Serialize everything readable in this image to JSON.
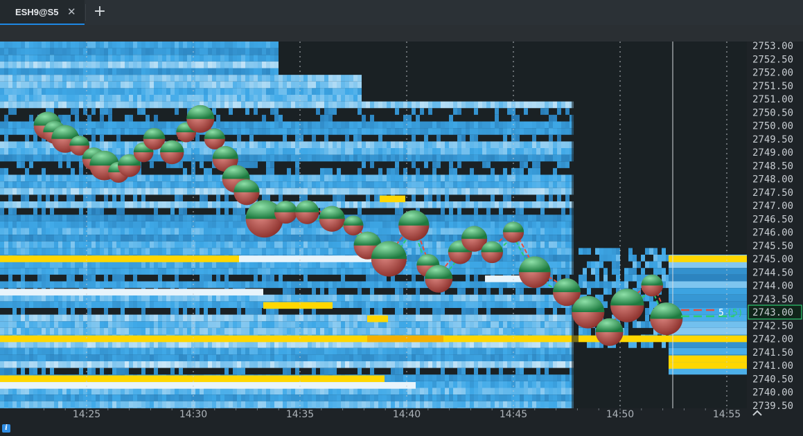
{
  "tab": {
    "label": "ESH9@S5",
    "close_glyph": "✕",
    "add_glyph": "+"
  },
  "price_axis": {
    "labels": [
      "2753.00",
      "2752.50",
      "2752.00",
      "2751.50",
      "2751.00",
      "2750.50",
      "2750.00",
      "2749.50",
      "2749.00",
      "2748.50",
      "2748.00",
      "2747.50",
      "2747.00",
      "2746.50",
      "2746.00",
      "2745.50",
      "2745.00",
      "2744.50",
      "2744.00",
      "2743.50",
      "2743.00",
      "2742.50",
      "2742.00",
      "2741.50",
      "2741.00",
      "2740.50",
      "2740.00",
      "2739.50"
    ],
    "current_price": "2743.00",
    "highlight_color": "#2ecc71"
  },
  "time_axis": {
    "labels": [
      "14:25",
      "14:30",
      "14:35",
      "14:40",
      "14:45",
      "14:50",
      "14:55"
    ],
    "interval_tag": "S5"
  },
  "order_marker": {
    "qty": "5",
    "qty_paren": "(5)"
  },
  "colors": {
    "background": "#1a2124",
    "heat_low": "#1f6aa3",
    "heat_mid": "#3fa9e8",
    "heat_high": "#e8f4fb",
    "heat_max": "#ffd700",
    "bubble_buy": "#3aa55e",
    "bubble_sell": "#c0504d",
    "bid_line": "#2ecc71",
    "ask_line": "#e74c3c"
  },
  "chart_data": {
    "type": "heatmap",
    "symbol": "ESH9@S5",
    "trade_bubbles": [
      {
        "t": "14:23:10",
        "price": 2750.0,
        "size": 2
      },
      {
        "t": "14:23:30",
        "price": 2749.75,
        "size": 1.5
      },
      {
        "t": "14:24:00",
        "price": 2749.5,
        "size": 2
      },
      {
        "t": "14:24:40",
        "price": 2749.25,
        "size": 1.2
      },
      {
        "t": "14:25:20",
        "price": 2748.75,
        "size": 1.5
      },
      {
        "t": "14:25:50",
        "price": 2748.5,
        "size": 2.2
      },
      {
        "t": "14:26:30",
        "price": 2748.25,
        "size": 1.3
      },
      {
        "t": "14:27:00",
        "price": 2748.5,
        "size": 1.5
      },
      {
        "t": "14:27:40",
        "price": 2749.0,
        "size": 1.2
      },
      {
        "t": "14:28:10",
        "price": 2749.5,
        "size": 1.4
      },
      {
        "t": "14:29:00",
        "price": 2749.0,
        "size": 1.6
      },
      {
        "t": "14:29:40",
        "price": 2749.75,
        "size": 1.2
      },
      {
        "t": "14:30:20",
        "price": 2750.25,
        "size": 2
      },
      {
        "t": "14:31:00",
        "price": 2749.5,
        "size": 1.3
      },
      {
        "t": "14:31:30",
        "price": 2748.75,
        "size": 1.8
      },
      {
        "t": "14:32:00",
        "price": 2748.0,
        "size": 2
      },
      {
        "t": "14:32:30",
        "price": 2747.5,
        "size": 1.8
      },
      {
        "t": "14:33:20",
        "price": 2746.5,
        "size": 3
      },
      {
        "t": "14:34:20",
        "price": 2746.75,
        "size": 1.5
      },
      {
        "t": "14:35:20",
        "price": 2746.75,
        "size": 1.6
      },
      {
        "t": "14:36:30",
        "price": 2746.5,
        "size": 1.8
      },
      {
        "t": "14:37:30",
        "price": 2746.25,
        "size": 1.2
      },
      {
        "t": "14:38:10",
        "price": 2745.5,
        "size": 2
      },
      {
        "t": "14:39:10",
        "price": 2745.0,
        "size": 2.8
      },
      {
        "t": "14:40:20",
        "price": 2746.25,
        "size": 2.3
      },
      {
        "t": "14:41:00",
        "price": 2744.75,
        "size": 1.5
      },
      {
        "t": "14:41:30",
        "price": 2744.25,
        "size": 2
      },
      {
        "t": "14:42:30",
        "price": 2745.25,
        "size": 1.6
      },
      {
        "t": "14:43:10",
        "price": 2745.75,
        "size": 1.8
      },
      {
        "t": "14:44:00",
        "price": 2745.25,
        "size": 1.4
      },
      {
        "t": "14:45:00",
        "price": 2746.0,
        "size": 1.3
      },
      {
        "t": "14:46:00",
        "price": 2744.5,
        "size": 2.4
      },
      {
        "t": "14:47:30",
        "price": 2743.75,
        "size": 2
      },
      {
        "t": "14:48:30",
        "price": 2743.0,
        "size": 2.5
      },
      {
        "t": "14:49:30",
        "price": 2742.25,
        "size": 2
      },
      {
        "t": "14:50:20",
        "price": 2743.25,
        "size": 2.6
      },
      {
        "t": "14:51:30",
        "price": 2744.0,
        "size": 1.4
      },
      {
        "t": "14:52:10",
        "price": 2742.75,
        "size": 2.5
      }
    ]
  }
}
